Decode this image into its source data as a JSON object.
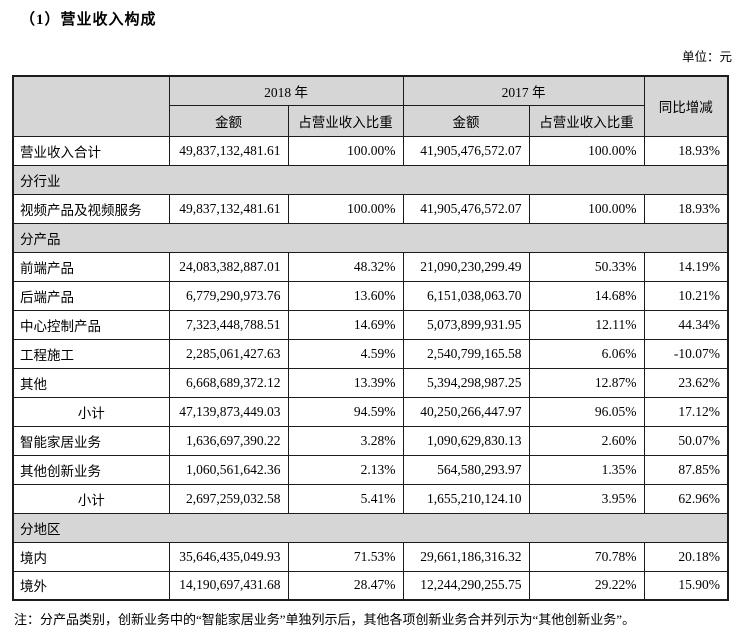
{
  "page": {
    "title": "（1）营业收入构成",
    "unit_label": "单位：元",
    "footnote": "注：分产品类别，创新业务中的“智能家居业务”单独列示后，其他各项创新业务合并列示为“其他创新业务”。"
  },
  "table": {
    "header": {
      "year_2018": "2018 年",
      "year_2017": "2017 年",
      "amount": "金额",
      "pct": "占营业收入比重",
      "yoy": "同比增减"
    },
    "rows": [
      {
        "type": "data",
        "label": "营业收入合计",
        "amt2018": "49,837,132,481.61",
        "pct2018": "100.00%",
        "amt2017": "41,905,476,572.07",
        "pct2017": "100.00%",
        "yoy": "18.93%"
      },
      {
        "type": "section",
        "label": "分行业"
      },
      {
        "type": "data",
        "label": "视频产品及视频服务",
        "amt2018": "49,837,132,481.61",
        "pct2018": "100.00%",
        "amt2017": "41,905,476,572.07",
        "pct2017": "100.00%",
        "yoy": "18.93%"
      },
      {
        "type": "section",
        "label": "分产品"
      },
      {
        "type": "data",
        "label": "前端产品",
        "amt2018": "24,083,382,887.01",
        "pct2018": "48.32%",
        "amt2017": "21,090,230,299.49",
        "pct2017": "50.33%",
        "yoy": "14.19%"
      },
      {
        "type": "data",
        "label": "后端产品",
        "amt2018": "6,779,290,973.76",
        "pct2018": "13.60%",
        "amt2017": "6,151,038,063.70",
        "pct2017": "14.68%",
        "yoy": "10.21%"
      },
      {
        "type": "data",
        "label": "中心控制产品",
        "amt2018": "7,323,448,788.51",
        "pct2018": "14.69%",
        "amt2017": "5,073,899,931.95",
        "pct2017": "12.11%",
        "yoy": "44.34%"
      },
      {
        "type": "data",
        "label": "工程施工",
        "amt2018": "2,285,061,427.63",
        "pct2018": "4.59%",
        "amt2017": "2,540,799,165.58",
        "pct2017": "6.06%",
        "yoy": "-10.07%"
      },
      {
        "type": "data",
        "label": "其他",
        "amt2018": "6,668,689,372.12",
        "pct2018": "13.39%",
        "amt2017": "5,394,298,987.25",
        "pct2017": "12.87%",
        "yoy": "23.62%"
      },
      {
        "type": "subtotal",
        "label": "小计",
        "amt2018": "47,139,873,449.03",
        "pct2018": "94.59%",
        "amt2017": "40,250,266,447.97",
        "pct2017": "96.05%",
        "yoy": "17.12%"
      },
      {
        "type": "data",
        "label": "智能家居业务",
        "amt2018": "1,636,697,390.22",
        "pct2018": "3.28%",
        "amt2017": "1,090,629,830.13",
        "pct2017": "2.60%",
        "yoy": "50.07%"
      },
      {
        "type": "data",
        "label": "其他创新业务",
        "amt2018": "1,060,561,642.36",
        "pct2018": "2.13%",
        "amt2017": "564,580,293.97",
        "pct2017": "1.35%",
        "yoy": "87.85%"
      },
      {
        "type": "subtotal",
        "label": "小计",
        "amt2018": "2,697,259,032.58",
        "pct2018": "5.41%",
        "amt2017": "1,655,210,124.10",
        "pct2017": "3.95%",
        "yoy": "62.96%"
      },
      {
        "type": "section",
        "label": "分地区"
      },
      {
        "type": "data",
        "label": "境内",
        "amt2018": "35,646,435,049.93",
        "pct2018": "71.53%",
        "amt2017": "29,661,186,316.32",
        "pct2017": "70.78%",
        "yoy": "20.18%"
      },
      {
        "type": "data",
        "label": "境外",
        "amt2018": "14,190,697,431.68",
        "pct2018": "28.47%",
        "amt2017": "12,244,290,255.75",
        "pct2017": "29.22%",
        "yoy": "15.90%"
      }
    ]
  }
}
